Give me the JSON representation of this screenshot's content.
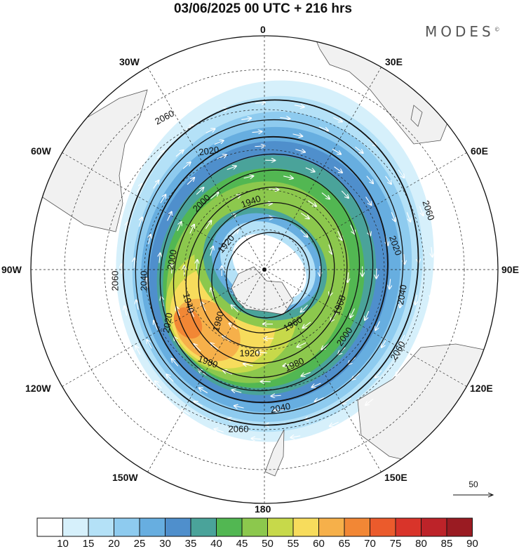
{
  "title": "03/06/2025  00 UTC  + 216 hrs",
  "brand": "MODES",
  "brand_mark": "©",
  "longitude_labels": [
    {
      "key": "0",
      "text": "0"
    },
    {
      "key": "30E",
      "text": "30E"
    },
    {
      "key": "60E",
      "text": "60E"
    },
    {
      "key": "90E",
      "text": "90E"
    },
    {
      "key": "120E",
      "text": "120E"
    },
    {
      "key": "150E",
      "text": "150E"
    },
    {
      "key": "180",
      "text": "180"
    },
    {
      "key": "150W",
      "text": "150W"
    },
    {
      "key": "120W",
      "text": "120W"
    },
    {
      "key": "90W",
      "text": "90W"
    },
    {
      "key": "60W",
      "text": "60W"
    },
    {
      "key": "30W",
      "text": "30W"
    }
  ],
  "contour_labels": [
    "2060",
    "2040",
    "2020",
    "2000",
    "1980",
    "1960",
    "1940",
    "1920"
  ],
  "reference_vector": {
    "label": "50"
  },
  "colorbar": {
    "labels": [
      "10",
      "15",
      "20",
      "25",
      "30",
      "35",
      "40",
      "45",
      "50",
      "55",
      "60",
      "65",
      "70",
      "75",
      "80",
      "85",
      "90"
    ],
    "colors": [
      "#ffffff",
      "#d6f0fb",
      "#b4e1f7",
      "#8ecbef",
      "#67aee0",
      "#4f8fcc",
      "#4aa39a",
      "#52b752",
      "#8cc84d",
      "#c7d94a",
      "#f7dc5c",
      "#f6b04a",
      "#f28735",
      "#eb5b2c",
      "#d9342a",
      "#bd2329",
      "#9a1b22"
    ]
  },
  "colors": {
    "land": "#f1f1f1",
    "coast": "#555555",
    "contour": "#111111",
    "vector": "#ffffff"
  }
}
